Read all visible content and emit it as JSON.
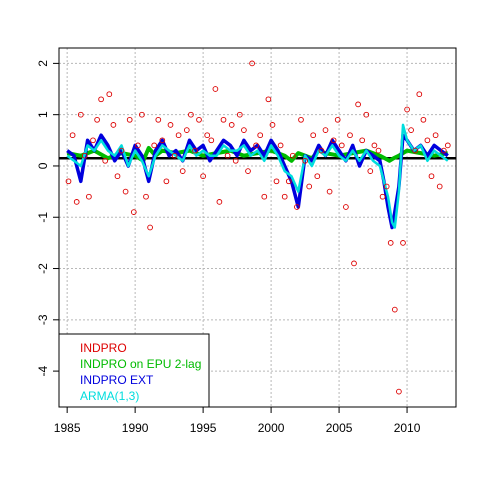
{
  "chart_data": {
    "type": "line",
    "title": "",
    "xlabel": "",
    "ylabel": "",
    "xlim": [
      1984.4,
      2013.6
    ],
    "ylim": [
      -4.7,
      2.3
    ],
    "x_ticks": [
      "1985",
      "1990",
      "1995",
      "2000",
      "2005",
      "2010"
    ],
    "y_ticks": [
      "2",
      "1",
      "0",
      "-1",
      "-2",
      "-3",
      "-4"
    ],
    "grid": true,
    "legend_position": "bottom-left",
    "reference_line": {
      "y": 0.15,
      "color": "#000000"
    },
    "series": [
      {
        "name": "INDPRO",
        "style": "points",
        "color": "#dd0000",
        "x": [
          1985.1,
          1985.4,
          1985.7,
          1986.0,
          1986.3,
          1986.6,
          1986.9,
          1987.2,
          1987.5,
          1987.8,
          1988.1,
          1988.4,
          1988.7,
          1989.0,
          1989.3,
          1989.6,
          1989.9,
          1990.2,
          1990.5,
          1990.8,
          1991.1,
          1991.4,
          1991.7,
          1992.0,
          1992.3,
          1992.6,
          1992.9,
          1993.2,
          1993.5,
          1993.8,
          1994.1,
          1994.4,
          1994.7,
          1995.0,
          1995.3,
          1995.6,
          1995.9,
          1996.2,
          1996.5,
          1996.8,
          1997.1,
          1997.4,
          1997.7,
          1998.0,
          1998.3,
          1998.6,
          1998.9,
          1999.2,
          1999.5,
          1999.8,
          2000.1,
          2000.4,
          2000.7,
          2001.0,
          2001.3,
          2001.6,
          2001.9,
          2002.2,
          2002.5,
          2002.8,
          2003.1,
          2003.4,
          2003.7,
          2004.0,
          2004.3,
          2004.6,
          2004.9,
          2005.2,
          2005.5,
          2005.8,
          2006.1,
          2006.4,
          2006.7,
          2007.0,
          2007.3,
          2007.6,
          2007.9,
          2008.2,
          2008.5,
          2008.8,
          2009.1,
          2009.4,
          2009.7,
          2010.0,
          2010.3,
          2010.6,
          2010.9,
          2011.2,
          2011.5,
          2011.8,
          2012.1,
          2012.4,
          2012.7,
          2013.0
        ],
        "y": [
          -0.3,
          0.6,
          -0.7,
          1.0,
          0.2,
          -0.6,
          0.5,
          0.9,
          1.3,
          0.1,
          1.4,
          0.8,
          -0.2,
          0.3,
          -0.5,
          0.9,
          -0.9,
          0.4,
          1.0,
          -0.6,
          -1.2,
          0.4,
          0.9,
          0.5,
          -0.3,
          0.8,
          0.2,
          0.6,
          -0.1,
          0.7,
          1.0,
          0.3,
          0.9,
          -0.2,
          0.6,
          0.5,
          1.5,
          -0.7,
          0.9,
          0.2,
          0.8,
          0.1,
          1.0,
          0.7,
          -0.1,
          2.0,
          0.4,
          0.6,
          -0.6,
          1.3,
          0.8,
          -0.3,
          0.4,
          -0.6,
          -0.3,
          0.2,
          -0.8,
          0.9,
          0.1,
          -0.4,
          0.6,
          -0.2,
          0.3,
          0.7,
          -0.5,
          0.5,
          0.9,
          0.4,
          -0.8,
          0.6,
          -1.9,
          1.2,
          0.5,
          1.0,
          -0.1,
          0.4,
          0.3,
          -0.6,
          -0.4,
          -1.5,
          -2.8,
          -4.4,
          -1.5,
          1.1,
          0.7,
          0.3,
          1.4,
          0.9,
          0.5,
          -0.2,
          0.6,
          -0.4,
          0.3,
          0.4
        ]
      },
      {
        "name": "INDPRO on EPU 2-lag",
        "style": "line",
        "color": "#00bb00",
        "x": [
          1985.0,
          1986.0,
          1987.0,
          1988.0,
          1989.0,
          1990.0,
          1990.6,
          1991.0,
          1991.5,
          1992.0,
          1993.0,
          1994.0,
          1995.0,
          1996.0,
          1997.0,
          1998.0,
          1999.0,
          2000.0,
          2001.0,
          2001.5,
          2002.0,
          2003.0,
          2003.5,
          2004.0,
          2005.0,
          2006.0,
          2007.0,
          2008.0,
          2008.7,
          2009.0,
          2009.4,
          2010.0,
          2011.0,
          2012.0,
          2013.0
        ],
        "y": [
          0.25,
          0.2,
          0.3,
          0.15,
          0.25,
          0.2,
          0.1,
          0.35,
          0.2,
          0.3,
          0.25,
          0.3,
          0.2,
          0.25,
          0.3,
          0.2,
          0.25,
          0.3,
          0.2,
          0.1,
          0.25,
          0.15,
          0.3,
          0.25,
          0.2,
          0.25,
          0.3,
          0.2,
          0.1,
          0.15,
          0.2,
          0.3,
          0.25,
          0.2,
          0.25
        ]
      },
      {
        "name": "INDPRO EXT",
        "style": "line",
        "color": "#0000dd",
        "x": [
          1985.0,
          1985.5,
          1986.0,
          1986.5,
          1987.0,
          1987.5,
          1988.0,
          1988.5,
          1989.0,
          1989.5,
          1990.0,
          1990.5,
          1991.0,
          1991.5,
          1992.0,
          1992.5,
          1993.0,
          1993.5,
          1994.0,
          1994.5,
          1995.0,
          1995.5,
          1996.0,
          1996.5,
          1997.0,
          1997.5,
          1998.0,
          1998.5,
          1999.0,
          1999.5,
          2000.0,
          2000.5,
          2001.0,
          2001.5,
          2002.0,
          2002.5,
          2003.0,
          2003.5,
          2004.0,
          2004.5,
          2005.0,
          2005.5,
          2006.0,
          2006.5,
          2007.0,
          2007.5,
          2008.0,
          2008.3,
          2008.6,
          2008.9,
          2009.1,
          2009.4,
          2009.7,
          2010.0,
          2010.5,
          2011.0,
          2011.5,
          2012.0,
          2012.5,
          2013.0
        ],
        "y": [
          0.3,
          0.2,
          -0.3,
          0.5,
          0.3,
          0.6,
          0.4,
          0.1,
          0.3,
          0.0,
          0.4,
          0.2,
          -0.3,
          0.3,
          0.5,
          0.2,
          0.3,
          0.1,
          0.5,
          0.3,
          0.4,
          0.1,
          0.3,
          0.5,
          0.4,
          0.2,
          0.5,
          0.3,
          0.4,
          0.2,
          0.5,
          0.3,
          0.0,
          -0.3,
          -0.8,
          0.2,
          0.1,
          0.4,
          0.2,
          0.5,
          0.3,
          0.1,
          0.4,
          0.0,
          0.3,
          0.2,
          0.1,
          -0.3,
          -0.8,
          -1.2,
          -0.9,
          -0.4,
          0.6,
          0.5,
          0.3,
          0.4,
          0.2,
          0.4,
          0.3,
          0.2
        ]
      },
      {
        "name": "ARMA(1,3)",
        "style": "line",
        "color": "#00dddd",
        "x": [
          1985.0,
          1985.5,
          1986.0,
          1986.5,
          1987.0,
          1987.5,
          1988.0,
          1988.5,
          1989.0,
          1989.5,
          1990.0,
          1990.5,
          1991.0,
          1991.5,
          1992.0,
          1992.5,
          1993.0,
          1993.5,
          1994.0,
          1994.5,
          1995.0,
          1995.5,
          1996.0,
          1996.5,
          1997.0,
          1997.5,
          1998.0,
          1998.5,
          1999.0,
          1999.5,
          2000.0,
          2000.5,
          2001.0,
          2001.5,
          2002.0,
          2002.5,
          2003.0,
          2003.5,
          2004.0,
          2004.5,
          2005.0,
          2005.5,
          2006.0,
          2006.5,
          2007.0,
          2007.5,
          2008.0,
          2008.3,
          2008.6,
          2008.9,
          2009.1,
          2009.4,
          2009.7,
          2010.0,
          2010.5,
          2011.0,
          2011.5,
          2012.0,
          2012.5,
          2013.0
        ],
        "y": [
          0.2,
          0.1,
          0.0,
          0.4,
          0.3,
          0.5,
          0.3,
          0.2,
          0.4,
          0.0,
          0.3,
          0.1,
          -0.2,
          0.2,
          0.4,
          0.3,
          0.2,
          0.1,
          0.4,
          0.2,
          0.3,
          0.2,
          0.2,
          0.4,
          0.3,
          0.3,
          0.4,
          0.2,
          0.3,
          0.1,
          0.4,
          0.2,
          -0.1,
          -0.2,
          -0.5,
          0.2,
          0.0,
          0.3,
          0.2,
          0.4,
          0.2,
          0.1,
          0.3,
          0.1,
          0.3,
          0.1,
          0.0,
          -0.3,
          -0.6,
          -1.1,
          -1.2,
          -0.5,
          0.8,
          0.5,
          0.3,
          0.4,
          0.1,
          0.3,
          0.2,
          0.1
        ]
      }
    ]
  }
}
